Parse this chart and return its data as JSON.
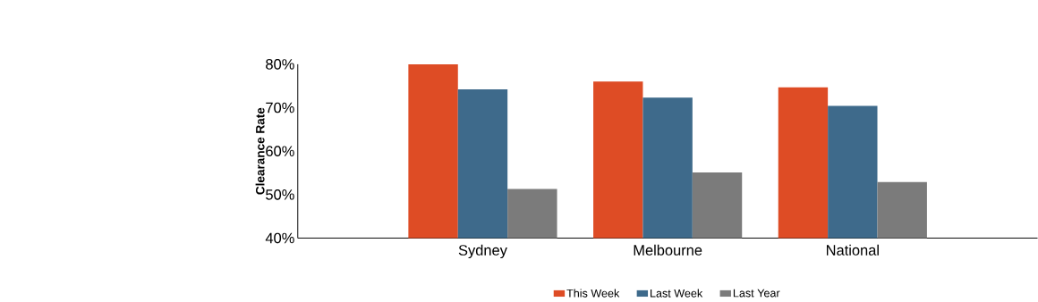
{
  "chart_data": {
    "type": "bar",
    "ylabel": "Clearance Rate",
    "categories": [
      "Sydney",
      "Melbourne",
      "National"
    ],
    "series": [
      {
        "name": "This Week",
        "color": "#de4c25",
        "values": [
          80.0,
          76.0,
          74.7
        ]
      },
      {
        "name": "Last Week",
        "color": "#3e6a8b",
        "values": [
          74.2,
          72.3,
          70.4
        ]
      },
      {
        "name": "Last Year",
        "color": "#7b7b7b",
        "values": [
          51.3,
          55.1,
          52.9
        ]
      }
    ],
    "ylim": [
      40,
      80
    ],
    "yticks": [
      {
        "value": 40,
        "label": "40%"
      },
      {
        "value": 50,
        "label": "50%"
      },
      {
        "value": 60,
        "label": "60%"
      },
      {
        "value": 70,
        "label": "70%"
      },
      {
        "value": 80,
        "label": "80%"
      }
    ],
    "legend": "bottom"
  }
}
